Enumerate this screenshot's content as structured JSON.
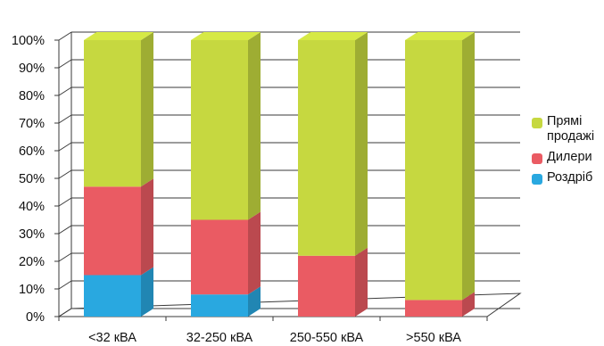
{
  "chart_data": {
    "type": "bar",
    "stacked": true,
    "three_d": true,
    "percent_stacked": true,
    "categories": [
      "<32 кВА",
      "32-250 кВА",
      "250-550 кВА",
      ">550 кВА"
    ],
    "series": [
      {
        "name": "Роздріб",
        "color": "#29a8e0",
        "values": [
          15,
          8,
          0,
          0
        ]
      },
      {
        "name": "Дилери",
        "color": "#ea5b63",
        "values": [
          32,
          27,
          22,
          6
        ]
      },
      {
        "name": "Прямі продажі",
        "color": "#c6d840",
        "values": [
          53,
          65,
          78,
          94
        ]
      }
    ],
    "y_ticks": [
      "0%",
      "10%",
      "20%",
      "30%",
      "40%",
      "50%",
      "60%",
      "70%",
      "80%",
      "90%",
      "100%"
    ],
    "ylim": [
      0,
      100
    ],
    "grid": true,
    "legend_position": "right",
    "title": "",
    "xlabel": "",
    "ylabel": ""
  },
  "legend": {
    "items": [
      {
        "label": "Прямі продажі",
        "color": "#c6d840"
      },
      {
        "label": "Дилери",
        "color": "#ea5b63"
      },
      {
        "label": "Роздріб",
        "color": "#29a8e0"
      }
    ]
  }
}
